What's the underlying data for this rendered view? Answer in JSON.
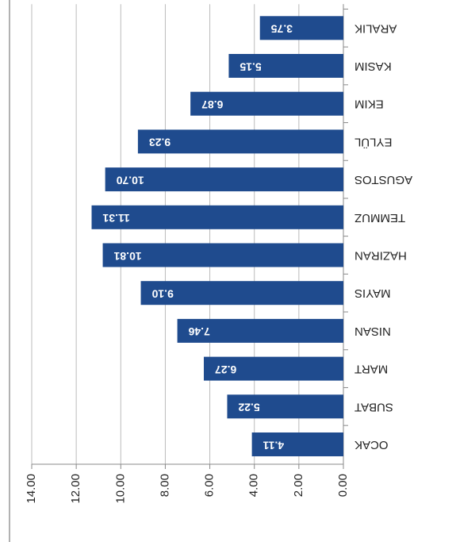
{
  "chart_data": {
    "type": "barh",
    "categories": [
      "OCAK",
      "SUBAT",
      "MART",
      "NISAN",
      "MAYIS",
      "HAZIRAN",
      "TEMMUZ",
      "AGUSTOS",
      "EYLÜL",
      "EKIM",
      "KASIM",
      "ARALIK"
    ],
    "values": [
      4.11,
      5.22,
      6.27,
      7.46,
      9.1,
      10.81,
      11.31,
      10.7,
      9.23,
      6.87,
      5.15,
      3.75
    ],
    "value_labels": [
      "4.11",
      "5.22",
      "6.27",
      "7.46",
      "9.10",
      "10.81",
      "11.31",
      "10.70",
      "9.23",
      "6.87",
      "5.15",
      "3.75"
    ],
    "color": "#1f4b8e",
    "xlim": [
      0,
      14
    ],
    "xticks": [
      {
        "value": 0,
        "label": "0.00"
      },
      {
        "value": 2,
        "label": "2.00"
      },
      {
        "value": 4,
        "label": "4.00"
      },
      {
        "value": 6,
        "label": "6.00"
      },
      {
        "value": 8,
        "label": "8.00"
      },
      {
        "value": 10,
        "label": "10.00"
      },
      {
        "value": 12,
        "label": "12.00"
      },
      {
        "value": 14,
        "label": "14.00"
      }
    ],
    "grid": true
  }
}
